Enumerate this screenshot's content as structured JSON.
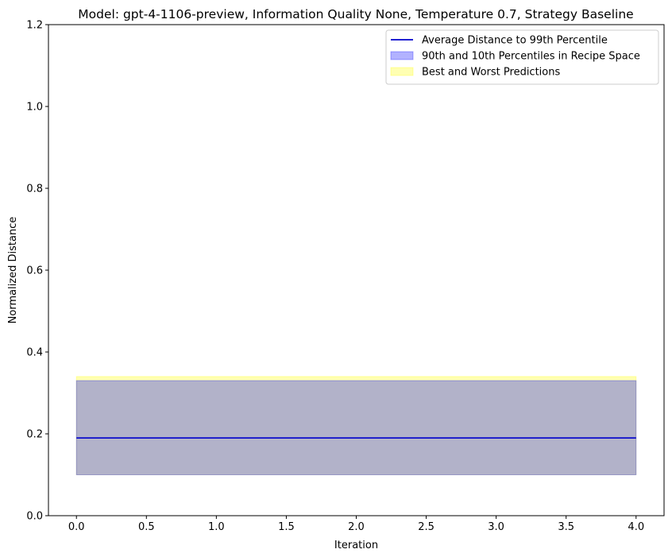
{
  "chart_data": {
    "type": "line",
    "title": "Model: gpt-4-1106-preview, Information Quality None, Temperature 0.7, Strategy Baseline",
    "xlabel": "Iteration",
    "ylabel": "Normalized Distance",
    "xlim": [
      -0.2,
      4.2
    ],
    "ylim": [
      0.0,
      1.2
    ],
    "xticks": [
      0.0,
      0.5,
      1.0,
      1.5,
      2.0,
      2.5,
      3.0,
      3.5,
      4.0
    ],
    "xtick_labels": [
      "0.0",
      "0.5",
      "1.0",
      "1.5",
      "2.0",
      "2.5",
      "3.0",
      "3.5",
      "4.0"
    ],
    "yticks": [
      0.0,
      0.2,
      0.4,
      0.6,
      0.8,
      1.0,
      1.2
    ],
    "ytick_labels": [
      "0.0",
      "0.2",
      "0.4",
      "0.6",
      "0.8",
      "1.0",
      "1.2"
    ],
    "grid": false,
    "legend_position": "top-right",
    "x": [
      0,
      1,
      2,
      3,
      4
    ],
    "series": [
      {
        "name": "Average Distance to 99th Percentile",
        "kind": "line",
        "color": "#0000cc",
        "values": [
          0.19,
          0.19,
          0.19,
          0.19,
          0.19
        ]
      },
      {
        "name": "90th and 10th Percentiles in Recipe Space",
        "kind": "band",
        "color": "#0000ff",
        "lower": [
          0.1,
          0.1,
          0.1,
          0.1,
          0.1
        ],
        "upper": [
          0.33,
          0.33,
          0.33,
          0.33,
          0.33
        ]
      },
      {
        "name": "Best and Worst Predictions",
        "kind": "band",
        "color": "#ffff00",
        "lower": [
          0.1,
          0.1,
          0.1,
          0.1,
          0.1
        ],
        "upper": [
          0.34,
          0.34,
          0.34,
          0.34,
          0.34
        ]
      }
    ]
  }
}
